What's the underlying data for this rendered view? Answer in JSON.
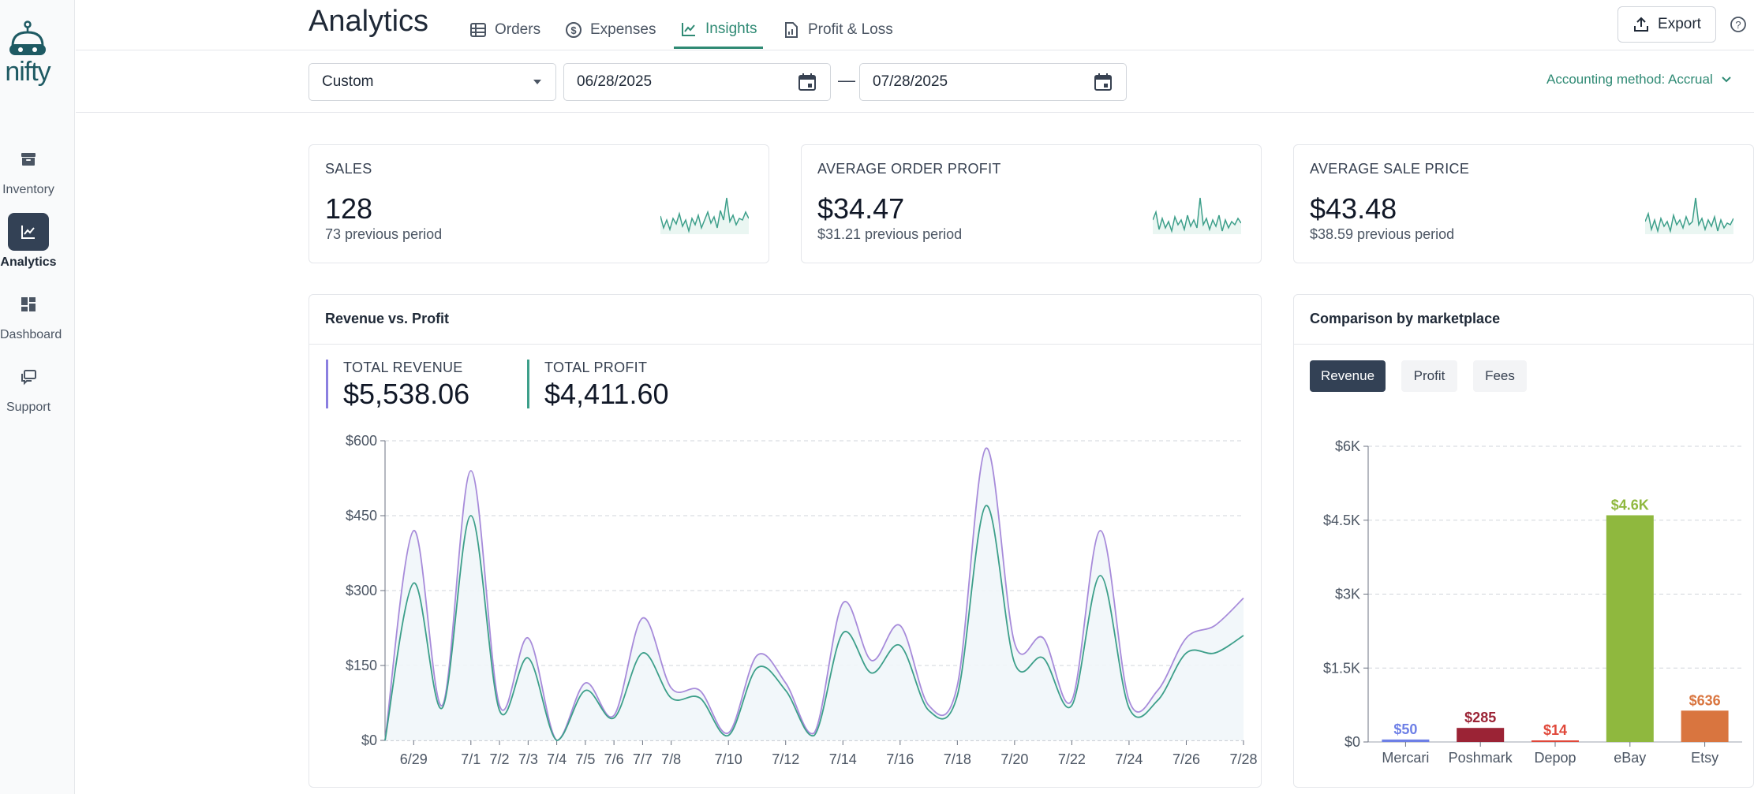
{
  "sidebar": {
    "logo_text": "nifty",
    "items": [
      {
        "label": "Inventory",
        "icon": "archive-box-icon",
        "active": false
      },
      {
        "label": "Analytics",
        "icon": "chart-line-icon",
        "active": true
      },
      {
        "label": "Dashboard",
        "icon": "dashboard-grid-icon",
        "active": false
      },
      {
        "label": "Support",
        "icon": "chat-bubbles-icon",
        "active": false
      }
    ]
  },
  "header": {
    "title": "Analytics",
    "tabs": [
      {
        "label": "Orders",
        "icon": "table-grid-icon",
        "active": false
      },
      {
        "label": "Expenses",
        "icon": "dollar-circle-icon",
        "active": false
      },
      {
        "label": "Insights",
        "icon": "chart-line-icon",
        "active": true
      },
      {
        "label": "Profit & Loss",
        "icon": "document-chart-icon",
        "active": false
      }
    ],
    "export_label": "Export",
    "export_icon": "upload-icon",
    "help_icon": "question-circle-icon"
  },
  "filters": {
    "range_select": "Custom",
    "start_date": "06/28/2025",
    "end_date": "07/28/2025",
    "separator": "—",
    "accounting_method": "Accounting method: Accrual"
  },
  "kpis": [
    {
      "label": "SALES",
      "value": "128",
      "previous": "73 previous period"
    },
    {
      "label": "AVERAGE ORDER PROFIT",
      "value": "$34.47",
      "previous": "$31.21 previous period"
    },
    {
      "label": "AVERAGE SALE PRICE",
      "value": "$43.48",
      "previous": "$38.59 previous period"
    }
  ],
  "colors": {
    "accent": "#2f8a74",
    "revenue_line": "#a78bda",
    "profit_line": "#3d9f8a",
    "sidebar_active": "#334155"
  },
  "revenue_profit": {
    "title": "Revenue vs. Profit",
    "total_revenue_label": "TOTAL REVENUE",
    "total_revenue": "$5,538.06",
    "total_profit_label": "TOTAL PROFIT",
    "total_profit": "$4,411.60"
  },
  "marketplace": {
    "title": "Comparison by marketplace",
    "toggles": [
      "Revenue",
      "Profit",
      "Fees"
    ],
    "active_toggle": "Revenue"
  },
  "chart_data": [
    {
      "type": "line",
      "title": "Revenue vs. Profit",
      "x": [
        "6/28",
        "6/29",
        "6/30",
        "7/1",
        "7/2",
        "7/3",
        "7/4",
        "7/5",
        "7/6",
        "7/7",
        "7/8",
        "7/9",
        "7/10",
        "7/11",
        "7/12",
        "7/13",
        "7/14",
        "7/15",
        "7/16",
        "7/17",
        "7/18",
        "7/19",
        "7/20",
        "7/21",
        "7/22",
        "7/23",
        "7/24",
        "7/25",
        "7/26",
        "7/27",
        "7/28"
      ],
      "x_tick_labels": [
        "6/29",
        "7/1",
        "7/2",
        "7/3",
        "7/4",
        "7/5",
        "7/6",
        "7/7",
        "7/8",
        "7/10",
        "7/12",
        "7/14",
        "7/16",
        "7/18",
        "7/20",
        "7/22",
        "7/24",
        "7/26",
        "7/28"
      ],
      "series": [
        {
          "name": "TOTAL REVENUE",
          "values": [
            0,
            420,
            70,
            540,
            70,
            205,
            0,
            115,
            50,
            245,
            105,
            100,
            15,
            170,
            115,
            15,
            275,
            160,
            230,
            70,
            110,
            585,
            195,
            205,
            80,
            420,
            80,
            100,
            205,
            230,
            285
          ]
        },
        {
          "name": "TOTAL PROFIT",
          "values": [
            0,
            315,
            65,
            450,
            60,
            165,
            0,
            100,
            45,
            175,
            85,
            85,
            10,
            145,
            100,
            10,
            215,
            135,
            190,
            60,
            90,
            470,
            155,
            165,
            70,
            330,
            65,
            80,
            175,
            175,
            210
          ]
        }
      ],
      "y_tick_labels": [
        "$0",
        "$150",
        "$300",
        "$450",
        "$600"
      ],
      "ylim": [
        0,
        600
      ],
      "grid": true
    },
    {
      "type": "bar",
      "title": "Comparison by marketplace",
      "categories": [
        "Mercari",
        "Poshmark",
        "Depop",
        "eBay",
        "Etsy"
      ],
      "values": [
        50,
        285,
        14,
        4600,
        636
      ],
      "value_labels": [
        "$50",
        "$285",
        "$14",
        "$4.6K",
        "$636"
      ],
      "bar_colors": [
        "#6d7fe6",
        "#9b2335",
        "#e0483a",
        "#8fb83e",
        "#d9753f"
      ],
      "y_tick_labels": [
        "$0",
        "$1.5K",
        "$3K",
        "$4.5K",
        "$6K"
      ],
      "ylim": [
        0,
        6000
      ],
      "grid": true
    }
  ]
}
